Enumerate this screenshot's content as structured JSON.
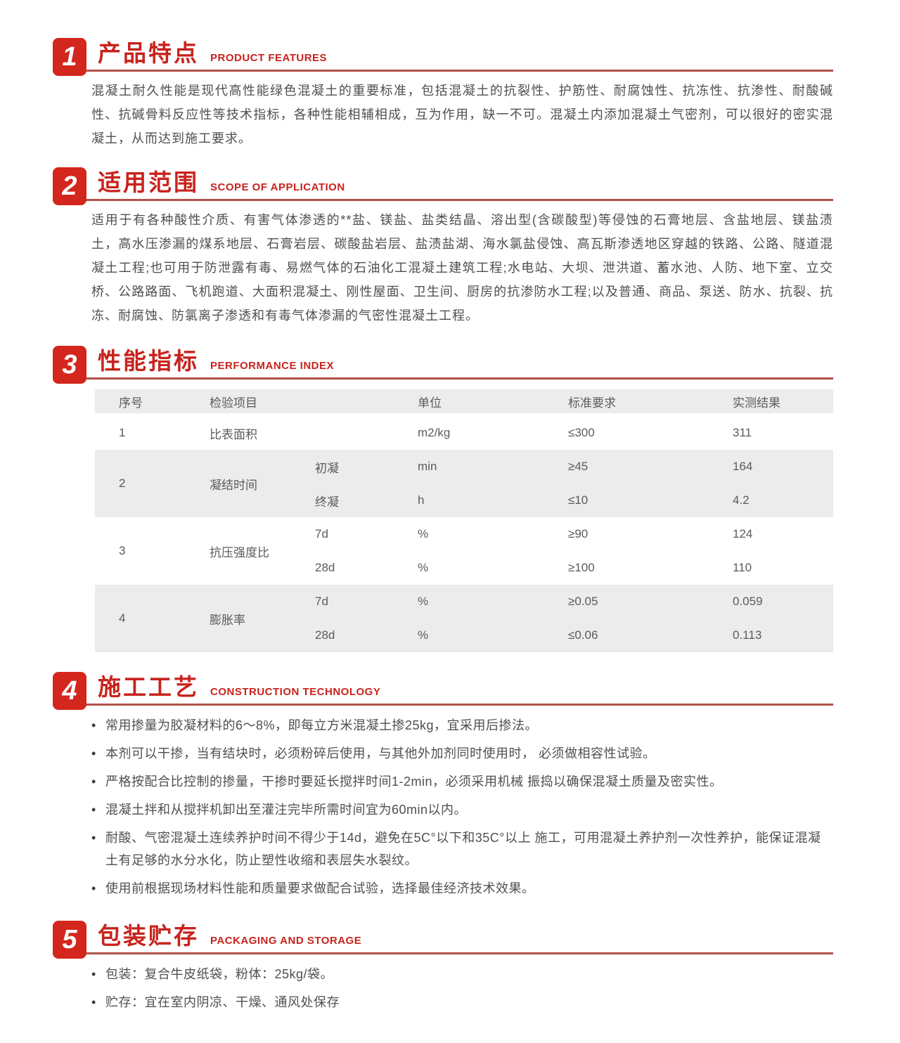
{
  "colors": {
    "accent_red": "#d3261c",
    "title_red": "#c8231d",
    "underline_red": "#b0524a",
    "table_shade": "#ececec"
  },
  "sections": {
    "s1": {
      "num": "1",
      "zh": "产品特点",
      "en": "PRODUCT FEATURES",
      "body": "混凝土耐久性能是现代高性能绿色混凝土的重要标准，包括混凝土的抗裂性、护筋性、耐腐蚀性、抗冻性、抗渗性、耐酸碱性、抗碱骨料反应性等技术指标，各种性能相辅相成，互为作用，缺一不可。混凝土内添加混凝土气密剂，可以很好的密实混凝土，从而达到施工要求。"
    },
    "s2": {
      "num": "2",
      "zh": "适用范围",
      "en": "SCOPE OF APPLICATION",
      "body": "适用于有各种酸性介质、有害气体渗透的**盐、镁盐、盐类结晶、溶出型(含碳酸型)等侵蚀的石膏地层、含盐地层、镁盐渍土，高水压渗漏的煤系地层、石膏岩层、碳酸盐岩层、盐渍盐湖、海水氯盐侵蚀、高瓦斯渗透地区穿越的铁路、公路、隧道混凝土工程;也可用于防泄露有毒、易燃气体的石油化工混凝土建筑工程;水电站、大坝、泄洪道、蓄水池、人防、地下室、立交桥、公路路面、飞机跑道、大面积混凝土、刚性屋面、卫生间、厨房的抗渗防水工程;以及普通、商品、泵送、防水、抗裂、抗冻、耐腐蚀、防氯离子渗透和有毒气体渗漏的气密性混凝土工程。"
    },
    "s3": {
      "num": "3",
      "zh": "性能指标",
      "en": "PERFORMANCE INDEX"
    },
    "s4": {
      "num": "4",
      "zh": "施工工艺",
      "en": "CONSTRUCTION TECHNOLOGY",
      "bullets": [
        "常用掺量为胶凝材料的6～8%，即每立方米混凝土掺25kg，宜采用后掺法。",
        "本剂可以干掺，当有结块时，必须粉碎后使用，与其他外加剂同时使用时， 必须做相容性试验。",
        "严格按配合比控制的掺量，干掺时要延长搅拌时间1-2min，必须采用机械 振捣以确保混凝土质量及密实性。",
        "混凝土拌和从搅拌机卸出至灌注完毕所需时间宜为60min以内。",
        "耐酸、气密混凝土连续养护时间不得少于14d，避免在5C°以下和35C°以上 施工，可用混凝土养护剂一次性养护，能保证混凝土有足够的水分水化，防止塑性收缩和表层失水裂纹。",
        "使用前根据现场材料性能和质量要求做配合试验，选择最佳经济技术效果。"
      ]
    },
    "s5": {
      "num": "5",
      "zh": "包装贮存",
      "en": "PACKAGING AND STORAGE",
      "bullets": [
        "包装：复合牛皮纸袋，粉体：25kg/袋。",
        "贮存：宜在室内阴凉、干燥、通风处保存"
      ]
    }
  },
  "table": {
    "headers": {
      "no": "序号",
      "item": "检验项目",
      "unit": "单位",
      "standard": "标准要求",
      "result": "实测结果"
    },
    "rows": [
      {
        "no": "1",
        "item": "比表面积",
        "unit": "m2/kg",
        "standard": "≤300",
        "result": "311"
      },
      {
        "no": "2",
        "item": "凝结时间",
        "sub1": {
          "name": "初凝",
          "unit": "min",
          "standard": "≥45",
          "result": "164"
        },
        "sub2": {
          "name": "终凝",
          "unit": "h",
          "standard": "≤10",
          "result": "4.2"
        }
      },
      {
        "no": "3",
        "item": "抗压强度比",
        "sub1": {
          "name": "7d",
          "unit": "%",
          "standard": "≥90",
          "result": "124"
        },
        "sub2": {
          "name": "28d",
          "unit": "%",
          "standard": "≥100",
          "result": "110"
        }
      },
      {
        "no": "4",
        "item": "膨胀率",
        "sub1": {
          "name": "7d",
          "unit": "%",
          "standard": "≥0.05",
          "result": "0.059"
        },
        "sub2": {
          "name": "28d",
          "unit": "%",
          "standard": "≤0.06",
          "result": "0.113"
        }
      }
    ]
  }
}
